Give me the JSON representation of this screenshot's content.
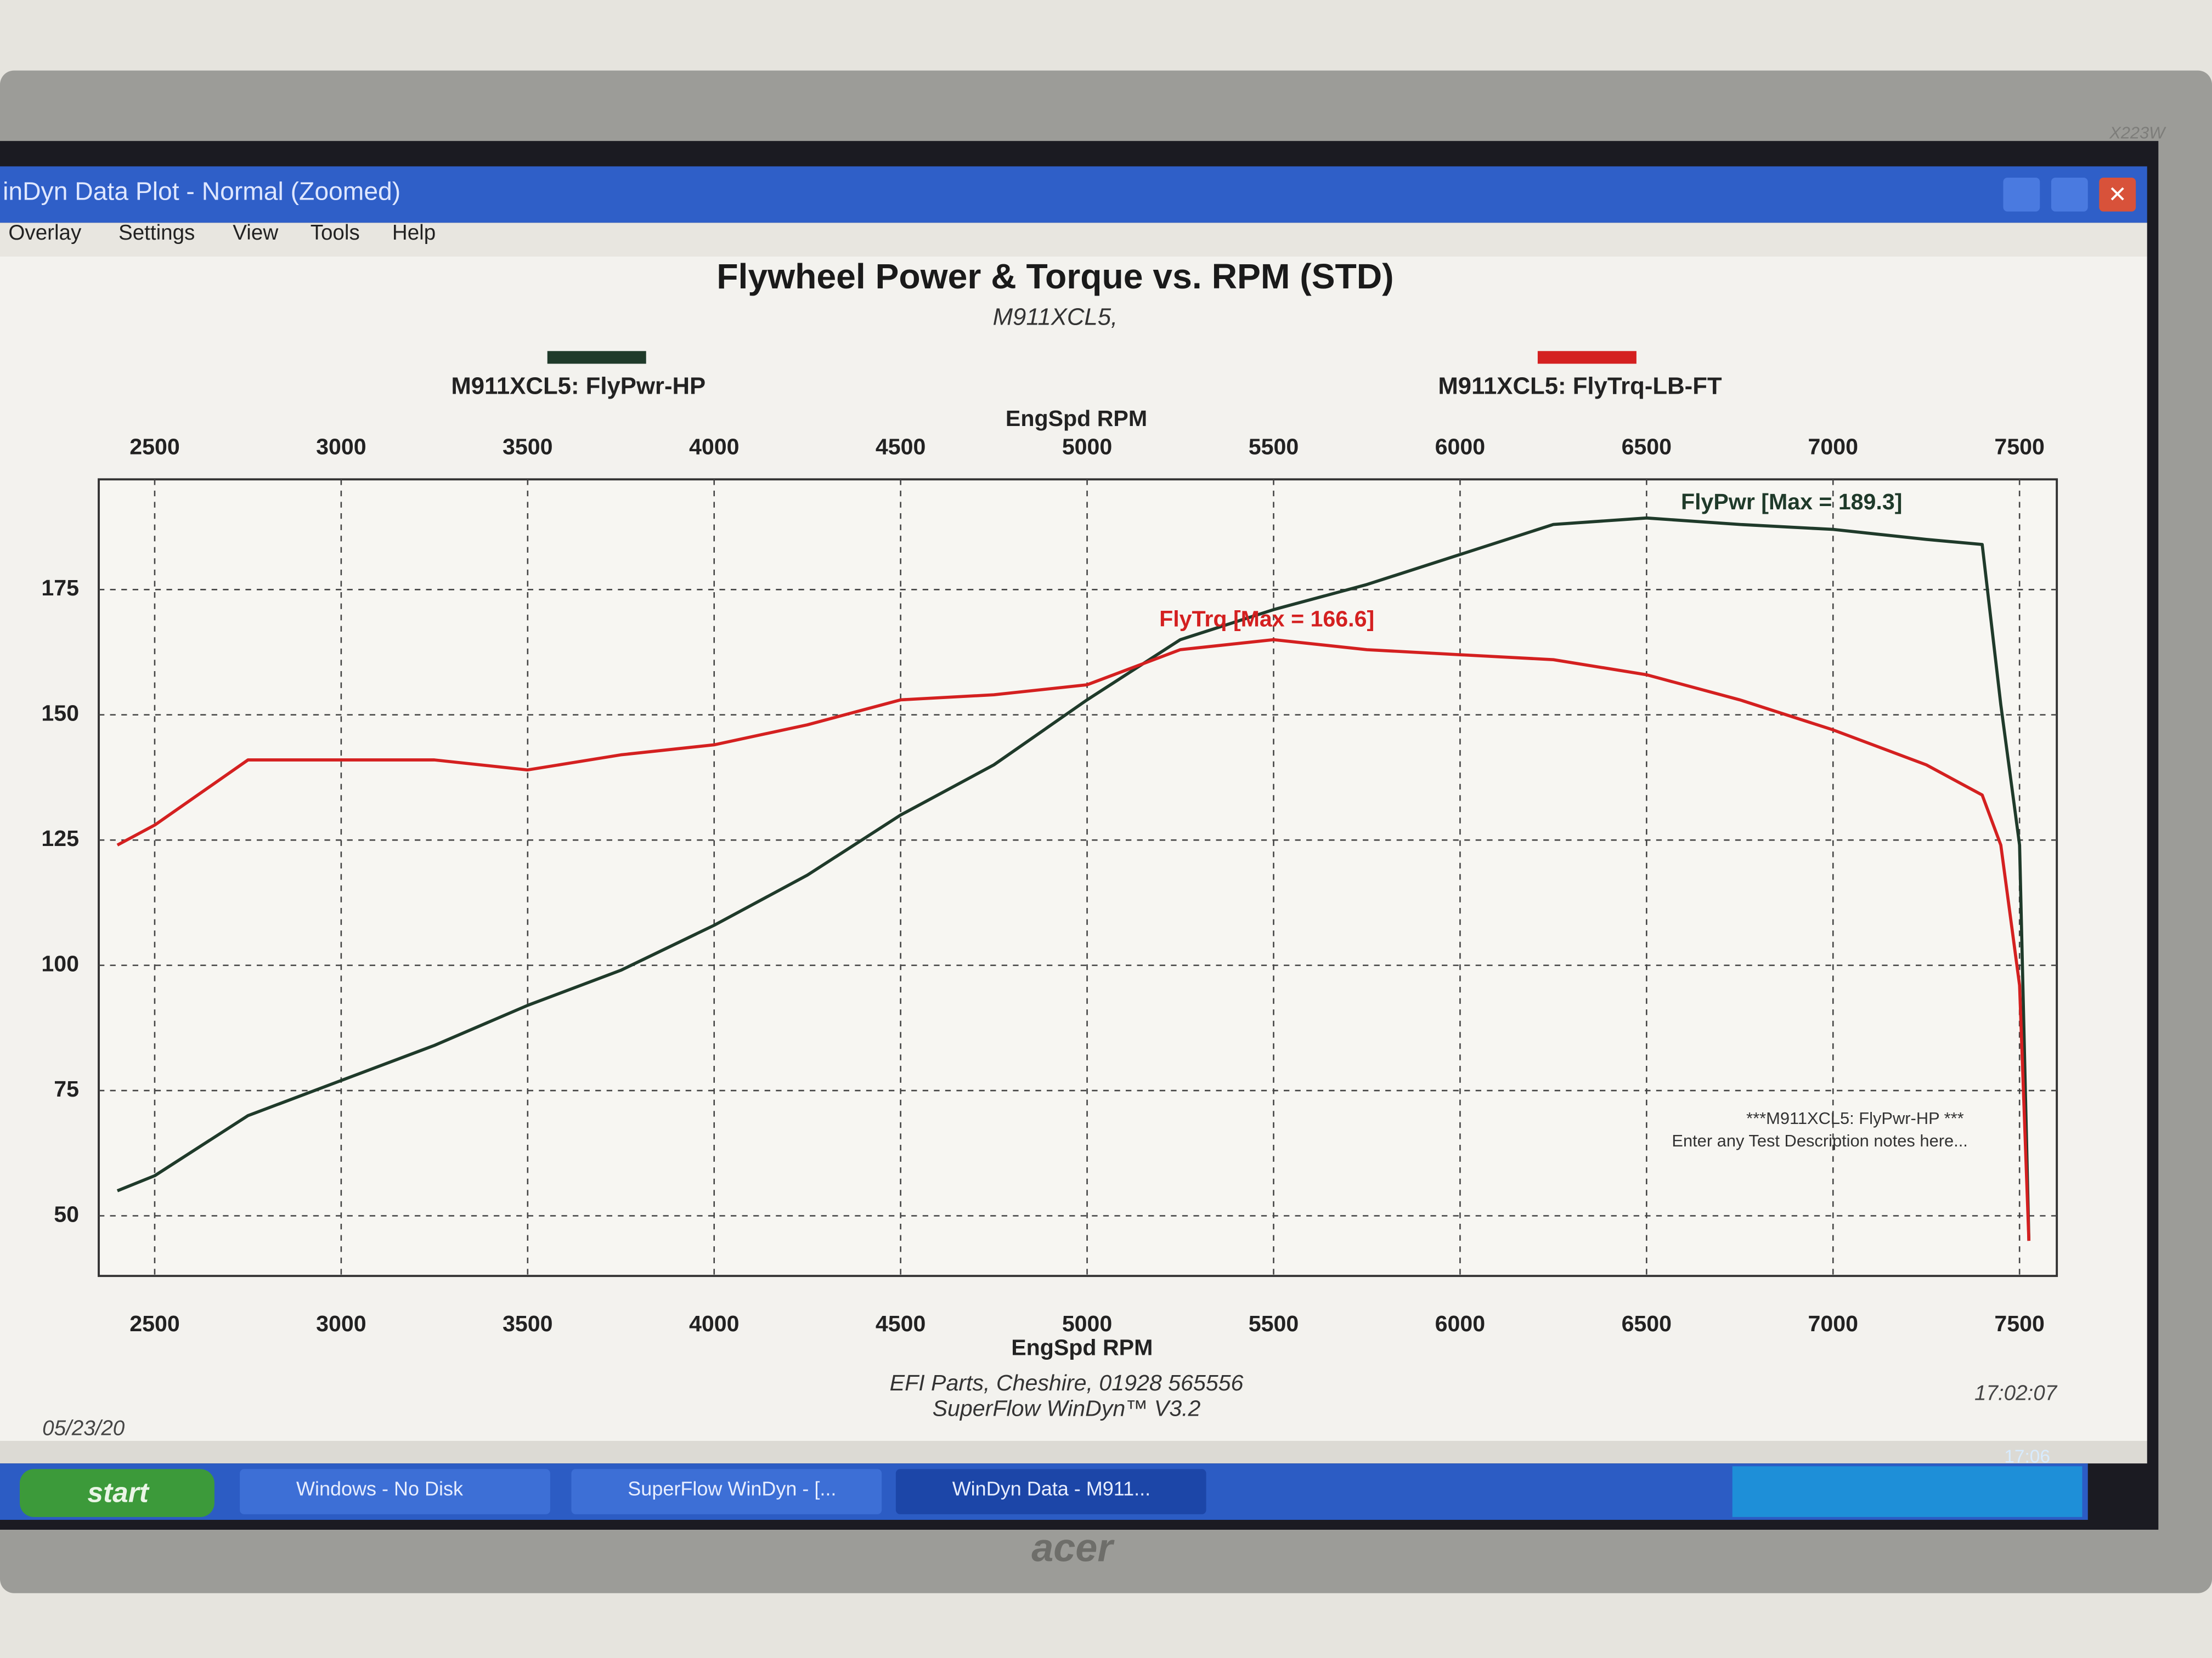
{
  "monitor": {
    "brand": "acer",
    "model": "X223W"
  },
  "window": {
    "title": "inDyn Data Plot - Normal   (Zoomed)",
    "menu": [
      "Overlay",
      "Settings",
      "View",
      "Tools",
      "Help"
    ]
  },
  "chart_data": {
    "type": "line",
    "title": "Flywheel Power & Torque vs. RPM (STD)",
    "subtitle": "M911XCL5,",
    "x_label": "EngSpd RPM",
    "x": [
      2400,
      2500,
      2750,
      3000,
      3250,
      3500,
      3750,
      4000,
      4250,
      4500,
      4750,
      5000,
      5250,
      5500,
      5750,
      6000,
      6250,
      6500,
      6750,
      7000,
      7250,
      7400,
      7450,
      7500,
      7525
    ],
    "series": [
      {
        "name": "M911XCL5: FlyPwr-HP",
        "color": "#1f3a2a",
        "values": [
          55,
          58,
          70,
          77,
          84,
          92,
          99,
          108,
          118,
          130,
          140,
          153,
          165,
          171,
          176,
          182,
          188,
          189.3,
          188,
          187,
          185,
          184,
          152,
          124,
          45
        ]
      },
      {
        "name": "M911XCL5: FlyTrq-LB-FT",
        "color": "#d42020",
        "values": [
          124,
          128,
          141,
          141,
          141,
          139,
          142,
          144,
          148,
          153,
          154,
          156,
          163,
          165,
          163,
          162,
          161,
          158,
          153,
          147,
          140,
          134,
          124,
          96,
          45
        ]
      }
    ],
    "xlim": [
      2350,
      7600
    ],
    "xticks": [
      2500,
      3000,
      3500,
      4000,
      4500,
      5000,
      5500,
      6000,
      6500,
      7000,
      7500
    ],
    "ylim": [
      38,
      197
    ],
    "yticks": [
      50,
      75,
      100,
      125,
      150,
      175
    ],
    "grid": true,
    "annotations": [
      "FlyPwr [Max = 189.3]",
      "FlyTrq [Max = 166.6]",
      "***M911XCL5: FlyPwr-HP ***",
      "Enter any Test Description notes here..."
    ]
  },
  "footer": {
    "company": "EFI Parts, Cheshire, 01928 565556",
    "software": "SuperFlow WinDyn™ V3.2",
    "date": "05/23/20",
    "time": "17:02:07"
  },
  "taskbar": {
    "start": "start",
    "buttons": [
      "Windows - No Disk",
      "SuperFlow WinDyn - [...",
      "WinDyn Data - M911..."
    ],
    "clock": "17:06"
  }
}
